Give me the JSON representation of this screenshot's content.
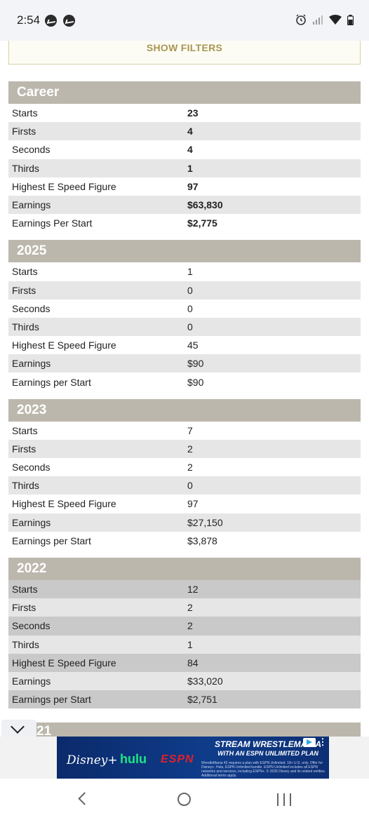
{
  "status_bar": {
    "time": "2:54",
    "left_icons": [
      "messenger-icon",
      "messenger-icon"
    ],
    "right_icons": [
      "alarm-icon",
      "signal-icon",
      "wifi-icon",
      "battery-icon"
    ]
  },
  "filters": {
    "label": "SHOW FILTERS"
  },
  "sections": [
    {
      "title": "Career",
      "rows": [
        {
          "label": "Starts",
          "value": "23"
        },
        {
          "label": "Firsts",
          "value": "4"
        },
        {
          "label": "Seconds",
          "value": "4"
        },
        {
          "label": "Thirds",
          "value": "1"
        },
        {
          "label": "Highest E Speed Figure",
          "value": "97"
        },
        {
          "label": "Earnings",
          "value": "$63,830"
        },
        {
          "label": "Earnings Per Start",
          "value": "$2,775"
        }
      ]
    },
    {
      "title": "2025",
      "rows": [
        {
          "label": "Starts",
          "value": "1"
        },
        {
          "label": "Firsts",
          "value": "0"
        },
        {
          "label": "Seconds",
          "value": "0"
        },
        {
          "label": "Thirds",
          "value": "0"
        },
        {
          "label": "Highest E Speed Figure",
          "value": "45"
        },
        {
          "label": "Earnings",
          "value": "$90"
        },
        {
          "label": "Earnings per Start",
          "value": "$90"
        }
      ]
    },
    {
      "title": "2023",
      "rows": [
        {
          "label": "Starts",
          "value": "7"
        },
        {
          "label": "Firsts",
          "value": "2"
        },
        {
          "label": "Seconds",
          "value": "2"
        },
        {
          "label": "Thirds",
          "value": "0"
        },
        {
          "label": "Highest E Speed Figure",
          "value": "97"
        },
        {
          "label": "Earnings",
          "value": "$27,150"
        },
        {
          "label": "Earnings per Start",
          "value": "$3,878"
        }
      ]
    },
    {
      "title": "2022",
      "rows": [
        {
          "label": "Starts",
          "value": "12"
        },
        {
          "label": "Firsts",
          "value": "2"
        },
        {
          "label": "Seconds",
          "value": "2"
        },
        {
          "label": "Thirds",
          "value": "1"
        },
        {
          "label": "Highest E Speed Figure",
          "value": "84"
        },
        {
          "label": "Earnings",
          "value": "$33,020"
        },
        {
          "label": "Earnings per Start",
          "value": "$2,751"
        }
      ]
    }
  ],
  "partial_section": {
    "title": "21"
  },
  "ad": {
    "title_line1": "STREAM WRESTLEMANIA",
    "title_line2": "WITH AN ESPN UNLIMITED PLAN",
    "fine_print": "WrestleMania 42 requires a plan with ESPN Unlimited. 18+ U.S. only. Offer for Disney+, Hulu, ESPN Unlimited bundle. ESPN Unlimited includes all ESPN networks and services, including ESPN+. © 2026 Disney and its related entities. Additional terms apply.",
    "brand_disney": "Disney+",
    "brand_hulu": "hulu",
    "brand_espn": "ESPN"
  },
  "nav_bar": {
    "icons": [
      "back-icon",
      "home-icon",
      "recent-apps-icon"
    ]
  }
}
